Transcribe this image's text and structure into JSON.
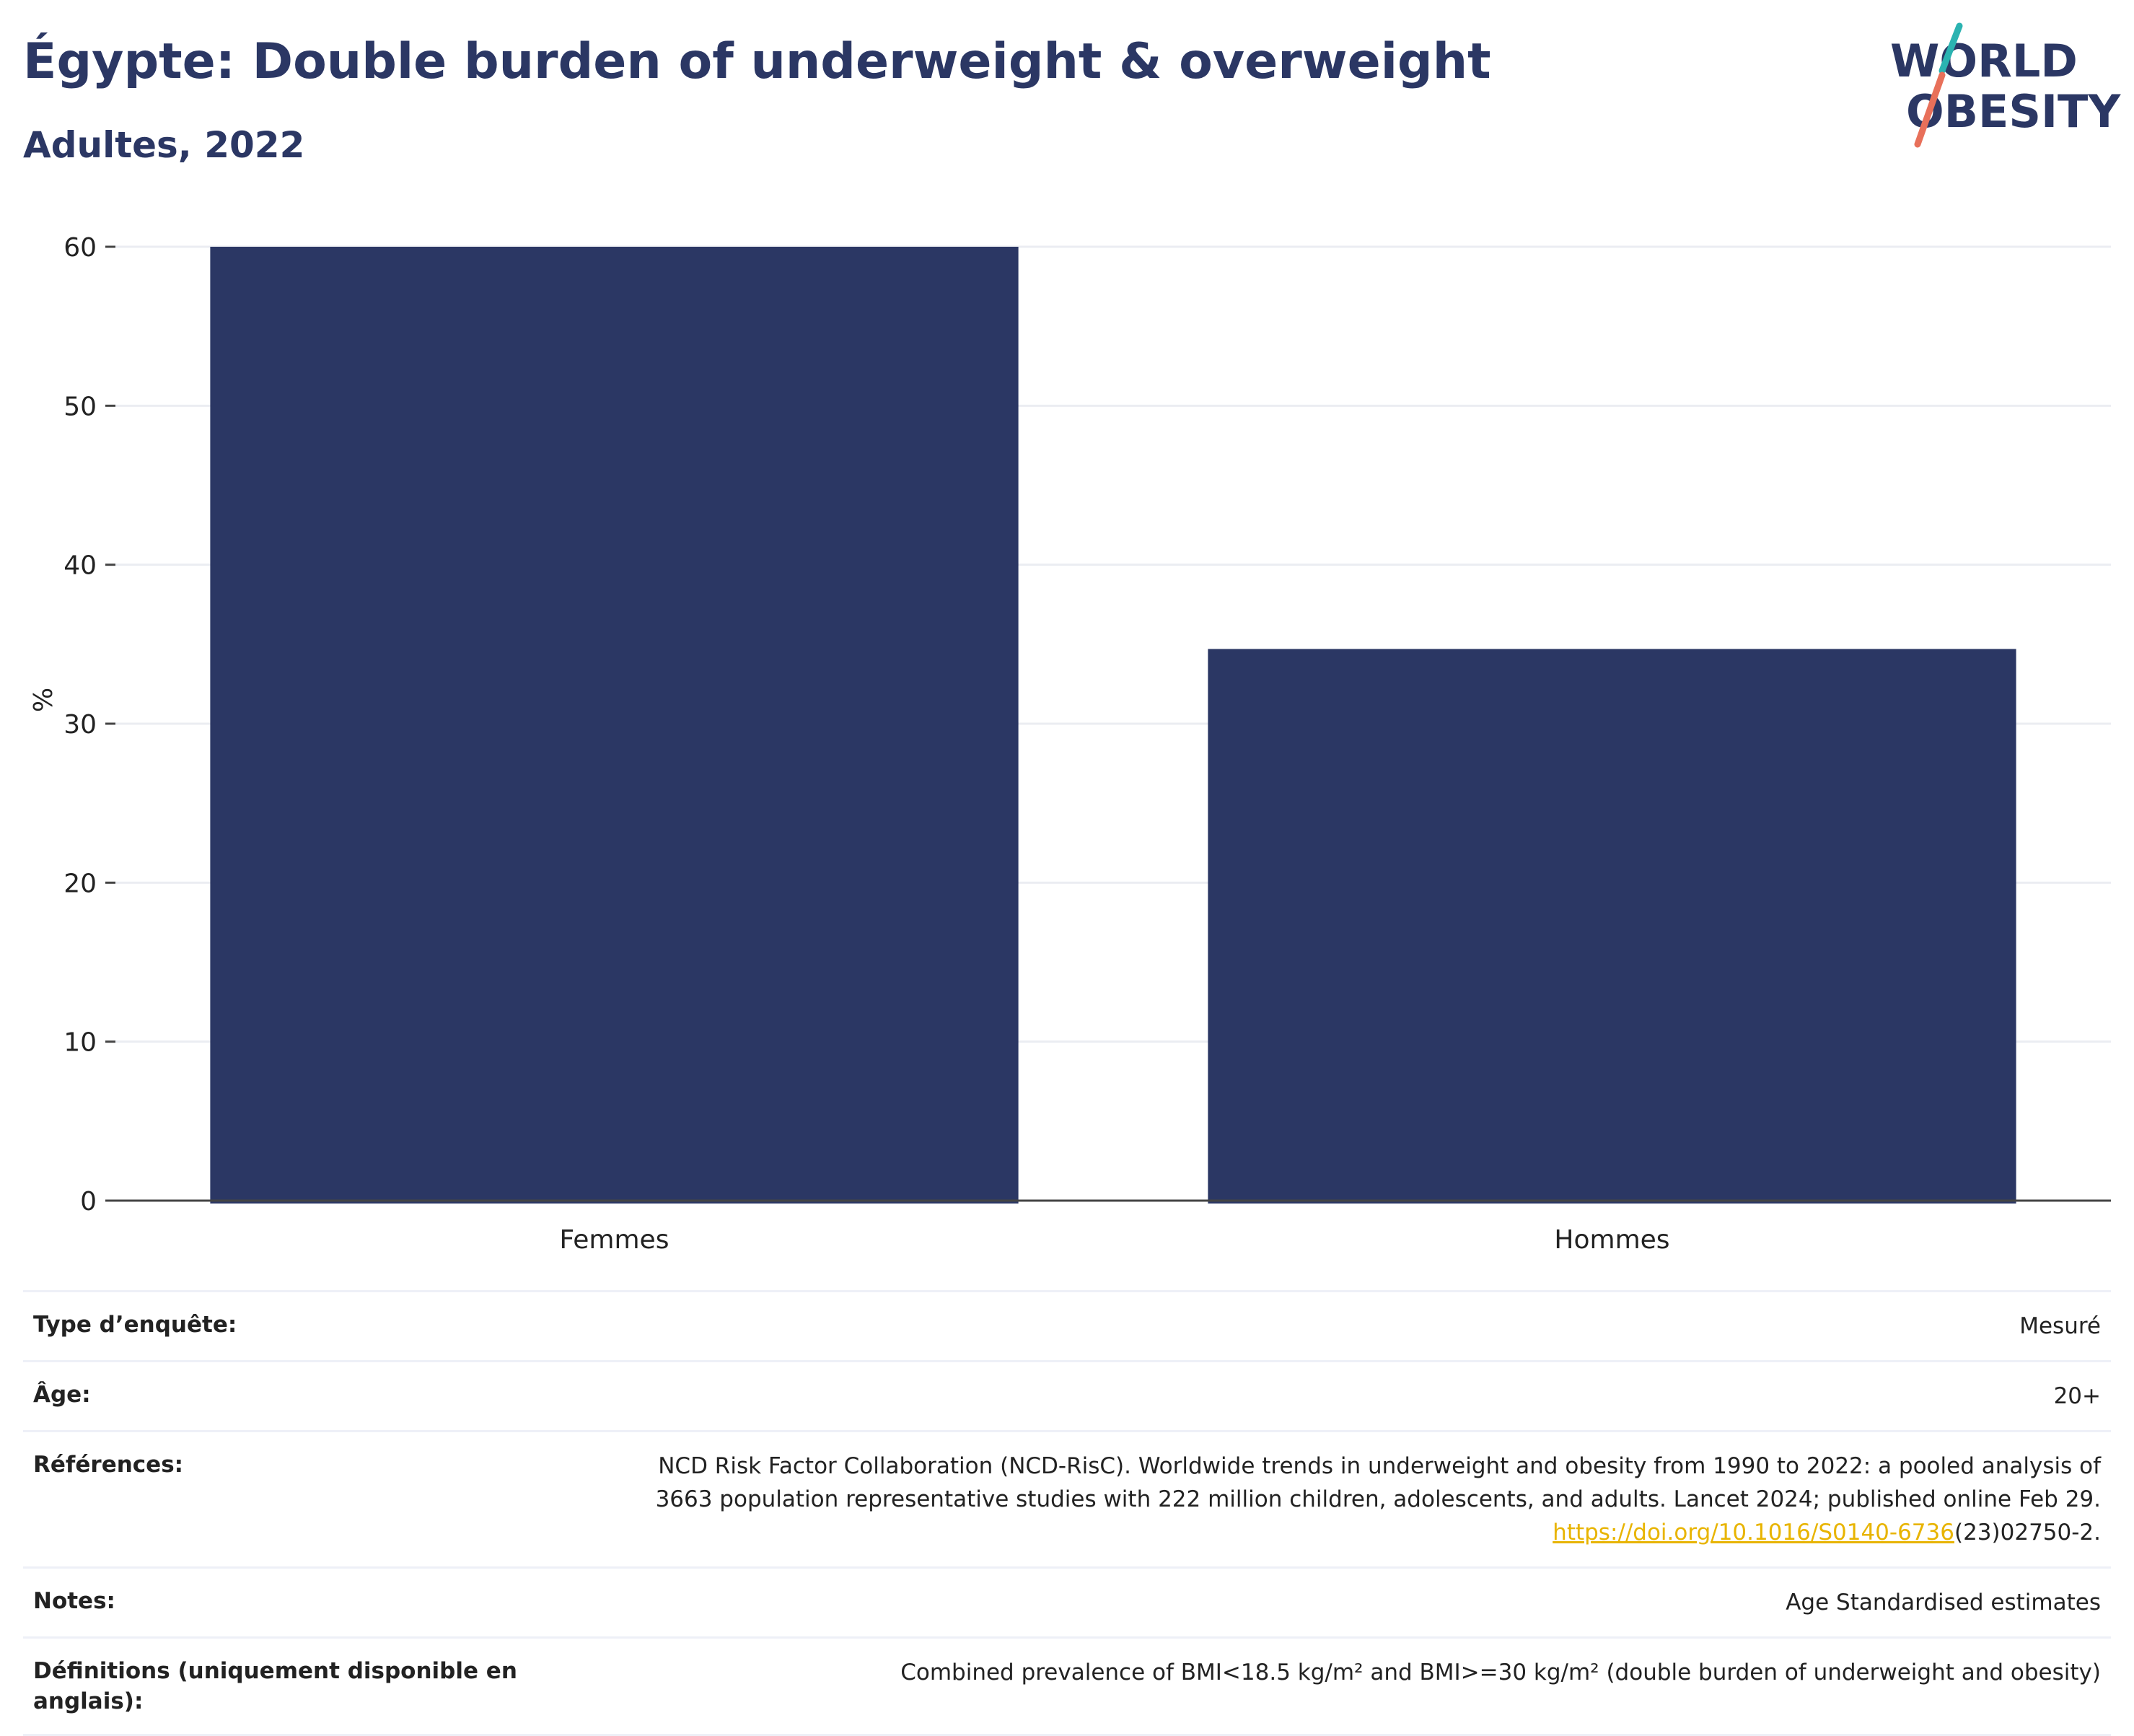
{
  "header": {
    "title": "Égypte: Double burden of underweight & overweight",
    "subtitle": "Adultes, 2022"
  },
  "logo": {
    "line1": "WORLD",
    "line2": "OBESITY",
    "colors": {
      "text": "#2b3764",
      "teal": "#2bb3b1",
      "coral": "#e8705a"
    }
  },
  "chart_data": {
    "type": "bar",
    "categories": [
      "Femmes",
      "Hommes"
    ],
    "values": [
      60.0,
      34.7
    ],
    "ylabel": "%",
    "xlabel": "",
    "ylim": [
      0,
      60
    ],
    "yticks": [
      0,
      10,
      20,
      30,
      40,
      50,
      60
    ],
    "bar_color": "#2b3764",
    "grid": true
  },
  "meta": {
    "survey_label": "Type d’enquête:",
    "survey_value": "Mesuré",
    "age_label": "Âge:",
    "age_value": "20+",
    "ref_label": "Références:",
    "ref_line1": "NCD Risk Factor Collaboration (NCD-RisC). Worldwide trends in underweight and obesity from 1990 to 2022: a pooled analysis of",
    "ref_line2": "3663 population representative studies with 222 million children, adolescents, and adults. Lancet 2024; published online Feb 29.",
    "ref_link": "https://doi.org/10.1016/S0140-6736",
    "ref_tail": "(23)02750-2.",
    "notes_label": "Notes:",
    "notes_value": "Age Standardised estimates",
    "def_label": "Définitions (uniquement disponible en anglais):",
    "def_value": "Combined prevalence of BMI<18.5 kg/m² and BMI>=30 kg/m² (double burden of underweight and obesity)"
  }
}
